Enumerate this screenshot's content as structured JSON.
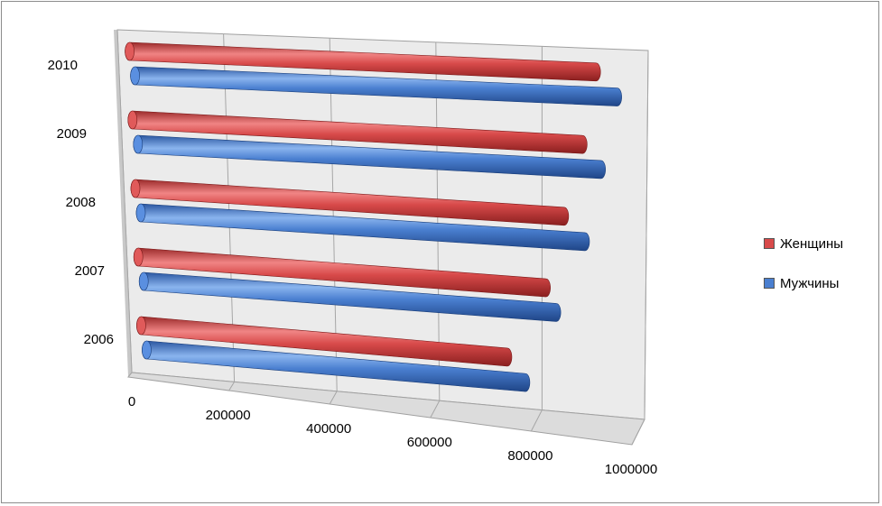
{
  "chart_data": {
    "type": "bar",
    "orientation": "horizontal",
    "three_d": true,
    "categories": [
      "2006",
      "2007",
      "2008",
      "2009",
      "2010"
    ],
    "series": [
      {
        "name": "Женщины",
        "color": "#d84a4a",
        "values": [
          715000,
          790000,
          825000,
          860000,
          885000
        ]
      },
      {
        "name": "Мужчины",
        "color": "#4a7fd0",
        "values": [
          750000,
          810000,
          865000,
          895000,
          925000
        ]
      }
    ],
    "xticks": [
      "0",
      "200000",
      "400000",
      "600000",
      "800000",
      "1000000"
    ],
    "xlim": [
      0,
      1000000
    ],
    "grid": true,
    "legend_position": "right"
  }
}
